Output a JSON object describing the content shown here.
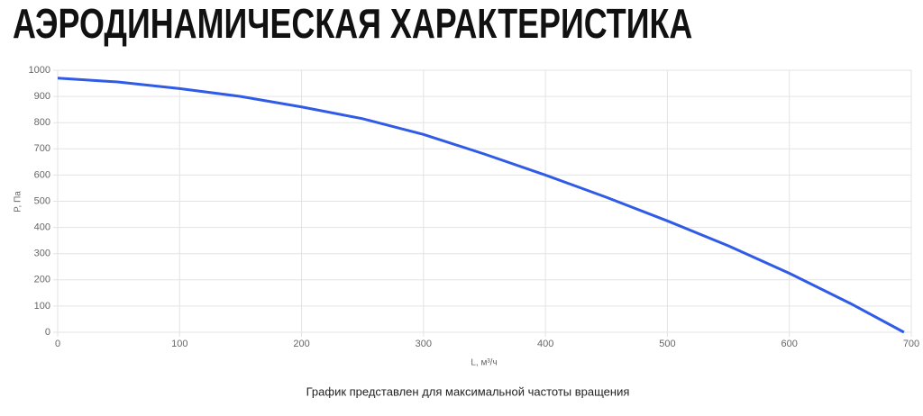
{
  "chart_data": {
    "type": "line",
    "title": "АЭРОДИНАМИЧЕСКАЯ ХАРАКТЕРИСТИКА",
    "x_label": "L, м³/ч",
    "y_label": "P, Па",
    "note": "График представлен для максимальной частоты вращения",
    "x": [
      0,
      50,
      100,
      150,
      200,
      250,
      300,
      350,
      400,
      450,
      500,
      550,
      600,
      650,
      694
    ],
    "series": [
      {
        "color": "#2f5be7",
        "values": [
          970,
          955,
          930,
          900,
          860,
          815,
          755,
          680,
          600,
          515,
          425,
          330,
          225,
          110,
          0
        ]
      }
    ],
    "xlim": [
      0,
      700
    ],
    "xticks": [
      0,
      100,
      200,
      300,
      400,
      500,
      600,
      700
    ],
    "ylim": [
      0,
      1000
    ],
    "yticks": [
      0,
      100,
      200,
      300,
      400,
      500,
      600,
      700,
      800,
      900,
      1000
    ],
    "grid": true
  }
}
